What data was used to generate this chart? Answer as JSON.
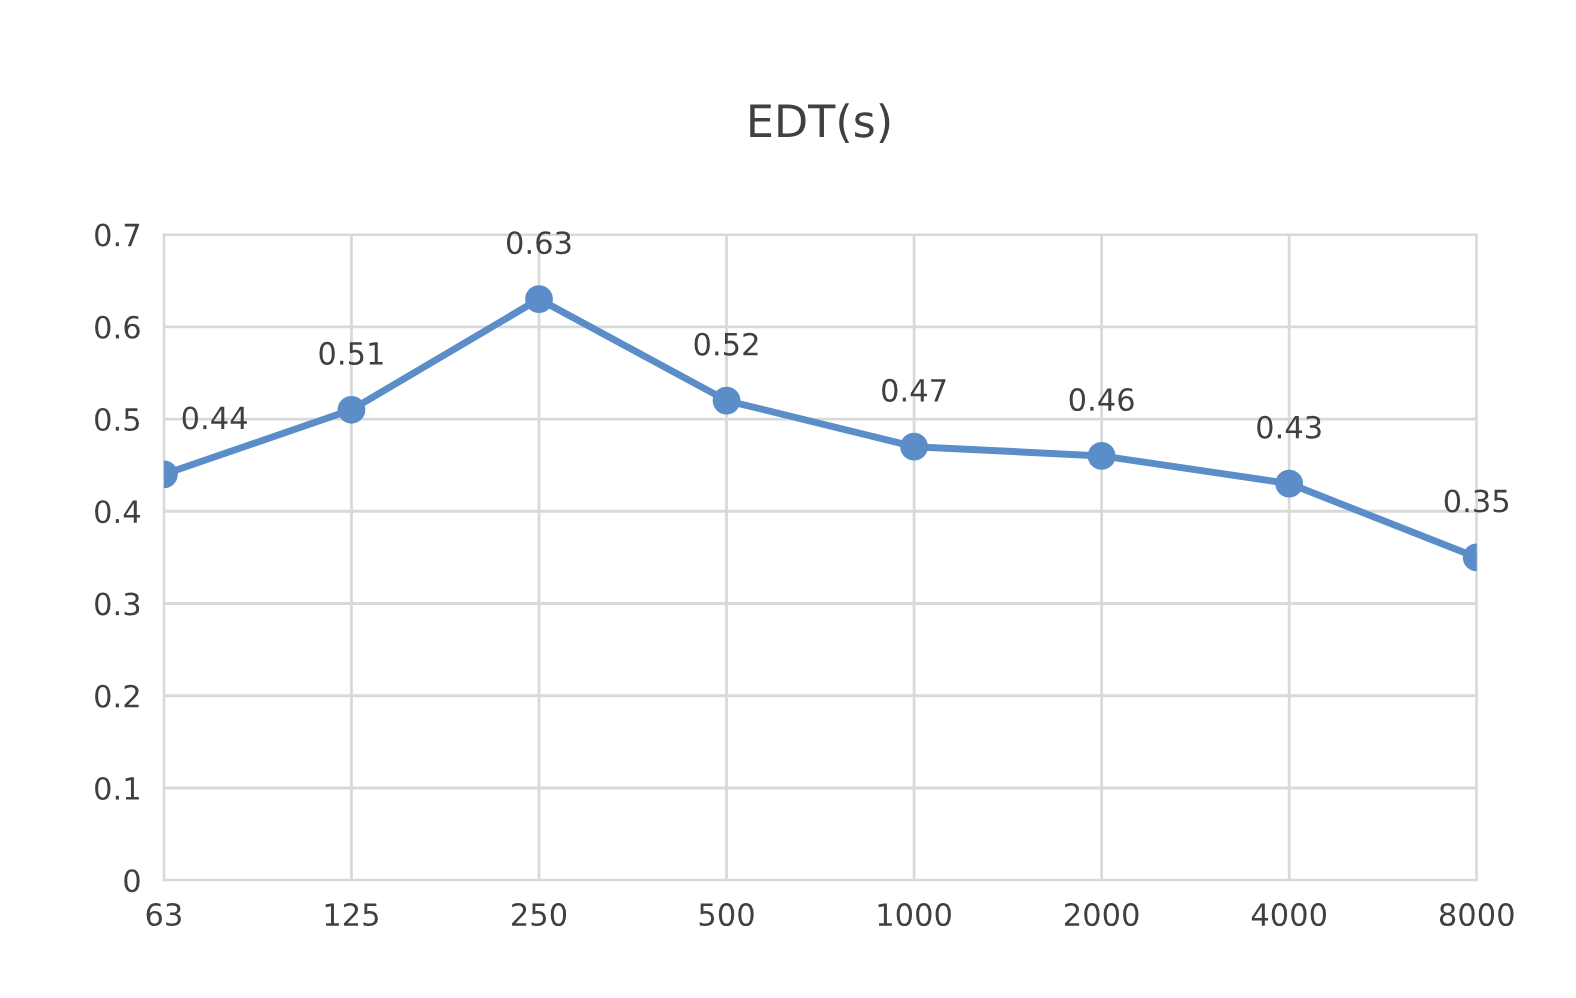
{
  "chart_data": {
    "type": "line",
    "title": "EDT(s)",
    "categories": [
      "63",
      "125",
      "250",
      "500",
      "1000",
      "2000",
      "4000",
      "8000"
    ],
    "series": [
      {
        "color": "#5b8ec8",
        "values": [
          0.44,
          0.51,
          0.63,
          0.52,
          0.47,
          0.46,
          0.43,
          0.35
        ]
      }
    ],
    "ylim": [
      0,
      0.7
    ],
    "yticks": [
      0,
      0.1,
      0.2,
      0.3,
      0.4,
      0.5,
      0.6,
      0.7
    ],
    "grid": true,
    "marker": "circle",
    "line_style": "solid",
    "data_labels": true,
    "legend": false
  }
}
